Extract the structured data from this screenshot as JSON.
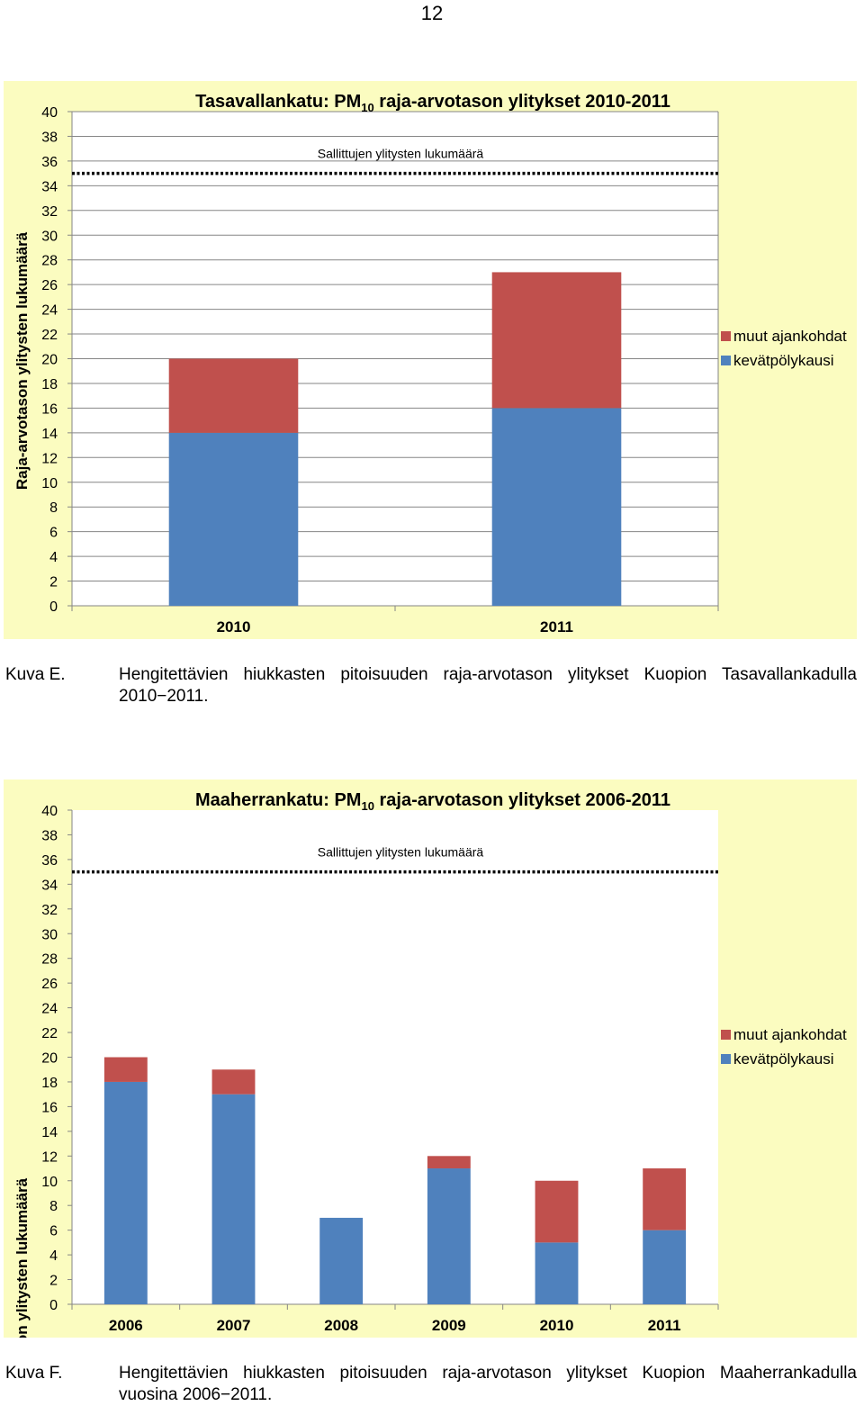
{
  "page_number": "12",
  "figures": [
    {
      "caption_label": "Kuva E.",
      "caption_text": "Hengitettävien hiukkasten pitoisuuden raja-arvotason ylitykset Kuopion Tasavallankadulla 2010−2011.",
      "chart": {
        "title_prefix": "Tasavallankatu: PM",
        "title_sub": "10",
        "title_suffix": " raja-arvotason ylitykset 2010-2011",
        "ylabel": "Raja-arvotason ylitysten lukumäärä",
        "limit_label": "Sallittujen ylitysten lukumäärä"
      }
    },
    {
      "caption_label": "Kuva F.",
      "caption_text": "Hengitettävien hiukkasten pitoisuuden raja-arvotason ylitykset Kuopion Maaherrankadulla vuosina 2006−2011.",
      "chart": {
        "title_prefix": "Maaherrankatu: PM",
        "title_sub": "10",
        "title_suffix": " raja-arvotason ylitykset 2006-2011",
        "ylabel": "Raja-arvotason ylitysten lukumäärä",
        "limit_label": "Sallittujen ylitysten lukumäärä"
      }
    }
  ],
  "chart_data": [
    {
      "type": "bar",
      "stacked": true,
      "title": "Tasavallankatu: PM10 raja-arvotason ylitykset 2010-2011",
      "ylabel": "Raja-arvotason ylitysten lukumäärä",
      "categories": [
        "2010",
        "2011"
      ],
      "series": [
        {
          "name": "kevätpölykausi",
          "color": "#4f81bd",
          "values": [
            14,
            16
          ]
        },
        {
          "name": "muut ajankohdat",
          "color": "#c0504d",
          "values": [
            6,
            11
          ]
        }
      ],
      "limit_value": 35,
      "limit_label": "Sallittujen ylitysten lukumäärä",
      "ylim": [
        0,
        40
      ],
      "yticks": [
        0,
        2,
        4,
        6,
        8,
        10,
        12,
        14,
        16,
        18,
        20,
        22,
        24,
        26,
        28,
        30,
        32,
        34,
        36,
        38,
        40
      ],
      "grid": true,
      "legend_position": "right"
    },
    {
      "type": "bar",
      "stacked": true,
      "title": "Maaherrankatu: PM10 raja-arvotason ylitykset 2006-2011",
      "ylabel": "Raja-arvotason ylitysten lukumäärä",
      "categories": [
        "2006",
        "2007",
        "2008",
        "2009",
        "2010",
        "2011"
      ],
      "series": [
        {
          "name": "kevätpölykausi",
          "color": "#4f81bd",
          "values": [
            18,
            17,
            7,
            11,
            5,
            6
          ]
        },
        {
          "name": "muut ajankohdat",
          "color": "#c0504d",
          "values": [
            2,
            2,
            0,
            1,
            5,
            5
          ]
        }
      ],
      "limit_value": 35,
      "limit_label": "Sallittujen ylitysten lukumäärä",
      "ylim": [
        0,
        40
      ],
      "yticks": [
        0,
        2,
        4,
        6,
        8,
        10,
        12,
        14,
        16,
        18,
        20,
        22,
        24,
        26,
        28,
        30,
        32,
        34,
        36,
        38,
        40
      ],
      "grid": false,
      "legend_position": "right"
    }
  ]
}
